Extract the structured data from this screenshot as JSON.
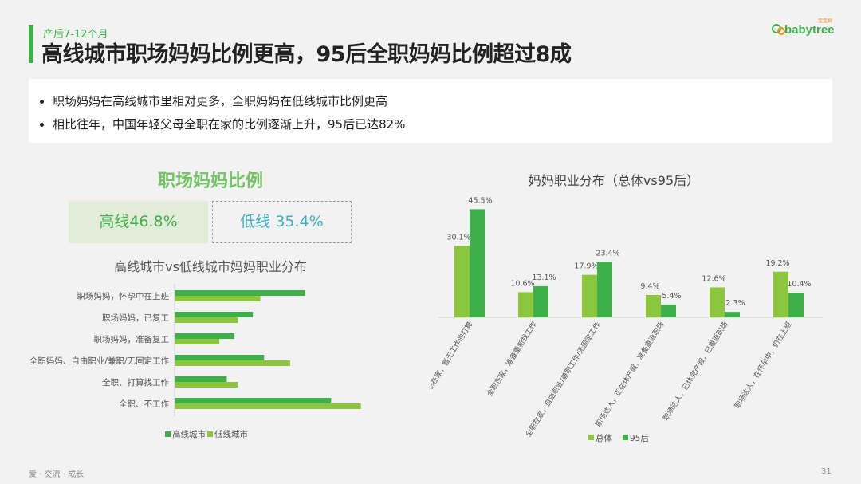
{
  "header": {
    "subtitle": "产后7-12个月",
    "title": "高线城市职场妈妈比例更高，95后全职妈妈比例超过8成"
  },
  "logo": {
    "text": "babytree",
    "cn": "宝宝树"
  },
  "summary": {
    "bullets": [
      "职场妈妈在高线城市里相对更多，全职妈妈在低线城市比例更高",
      "相比往年，中国年轻父母全职在家的比例逐渐上升，95后已达82%"
    ]
  },
  "ratio": {
    "title": "职场妈妈比例",
    "high": "高线46.8%",
    "low": "低线 35.4%"
  },
  "colors": {
    "dark_green": "#3eb049",
    "light_green": "#8cc63f"
  },
  "chart_data": [
    {
      "type": "bar",
      "orientation": "horizontal",
      "title": "高线城市vs低线城市妈妈职业分布",
      "categories": [
        "职场妈妈，怀孕中在上班",
        "职场妈妈，已复工",
        "职场妈妈，准备复工",
        "全职妈妈、自由职业/兼职/无固定工作",
        "全职、打算找工作",
        "全职、不工作"
      ],
      "series": [
        {
          "name": "高线城市",
          "color": "#3eb049",
          "values": [
            17.5,
            10.5,
            8.0,
            12.0,
            7.0,
            21.0
          ]
        },
        {
          "name": "低线城市",
          "color": "#8cc63f",
          "values": [
            11.5,
            8.5,
            6.0,
            15.5,
            8.5,
            25.0
          ]
        }
      ],
      "legend": "bottom"
    },
    {
      "type": "bar",
      "title": "妈妈职业分布（总体vs95后）",
      "categories": [
        "全职在家，暂无工作的打算",
        "全职在家，准备重新找工作",
        "全职在家，自由职业/兼职工作/无固定工作",
        "职场达人，正在休产假，准备重返职场",
        "职场达人，已休完产假，已重返职场",
        "职场达人，在怀孕中，仍在上班"
      ],
      "series": [
        {
          "name": "总体",
          "color": "#8cc63f",
          "values": [
            30.1,
            10.6,
            17.9,
            9.4,
            12.6,
            19.2
          ],
          "labels": [
            "30.1%",
            "10.6%",
            "17.9%",
            "9.4%",
            "12.6%",
            "19.2%"
          ]
        },
        {
          "name": "95后",
          "color": "#3eb049",
          "values": [
            45.5,
            13.1,
            23.4,
            5.4,
            2.3,
            10.4
          ],
          "labels": [
            "45.5%",
            "13.1%",
            "23.4%",
            "5.4%",
            "2.3%",
            "10.4%"
          ]
        }
      ],
      "legend": "bottom"
    }
  ],
  "footer": {
    "left": "爱 · 交流 · 成长",
    "page": "31"
  }
}
